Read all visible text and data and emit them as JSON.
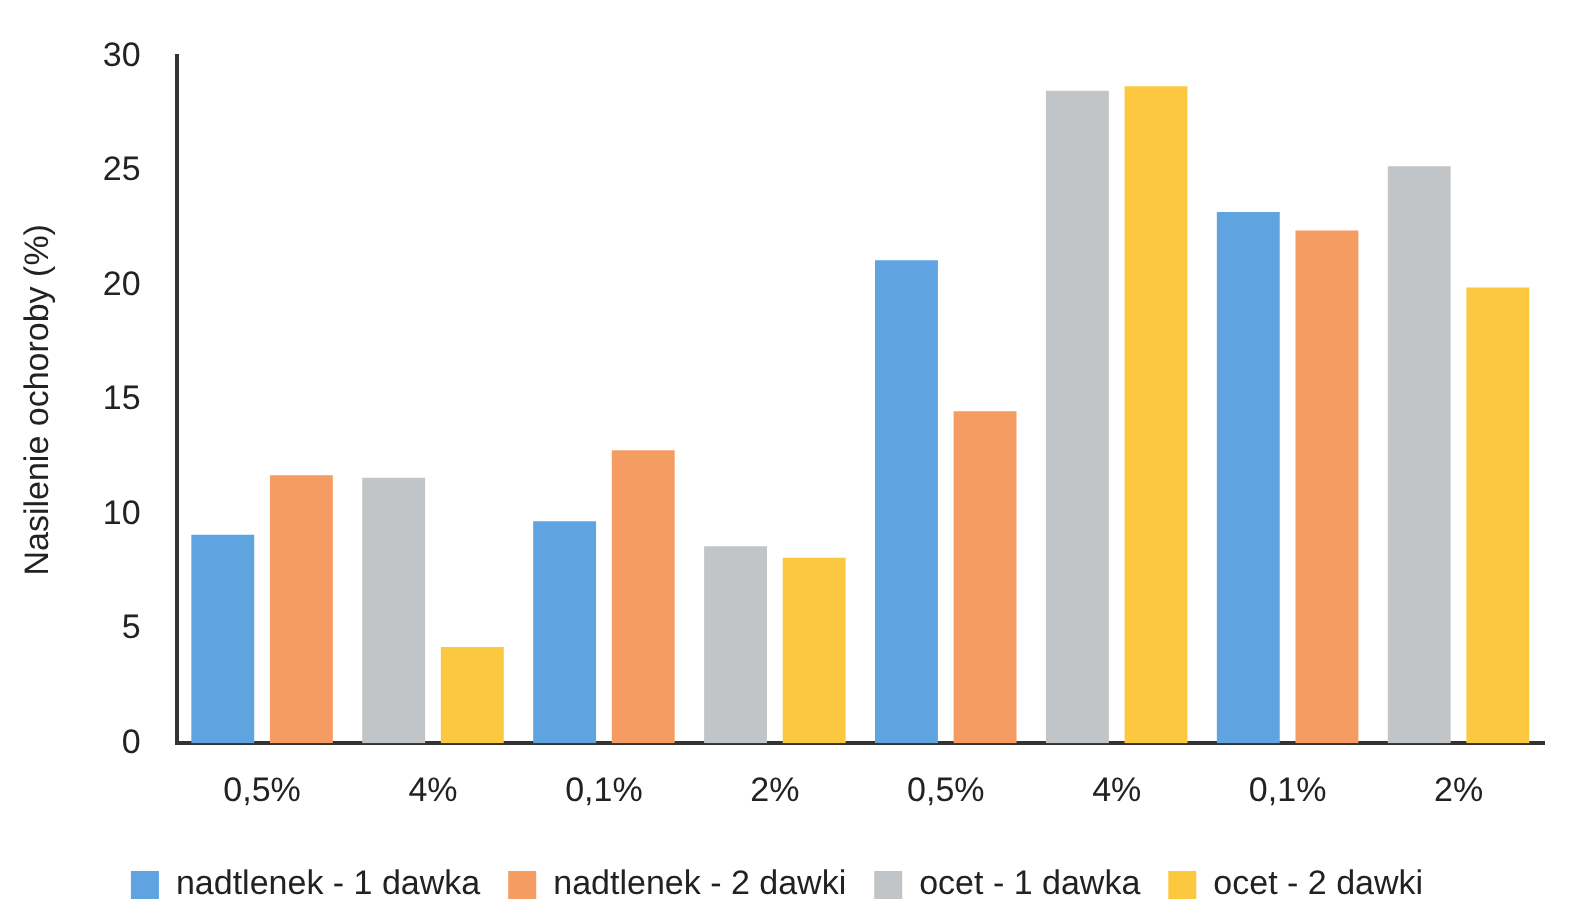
{
  "chart_data": {
    "type": "bar",
    "ylabel": "Nasilenie ochoroby (%)",
    "categories": [
      "0,5%",
      "4%",
      "0,1%",
      "2%",
      "0,5%",
      "4%",
      "0,1%",
      "2%"
    ],
    "series": [
      {
        "name": "nadtlenek - 1 dawka",
        "color": "#5fa3e0",
        "values": [
          9.1,
          null,
          9.7,
          null,
          21.1,
          null,
          23.2,
          null
        ]
      },
      {
        "name": "nadtlenek - 2 dawki",
        "color": "#f59c62",
        "values": [
          11.7,
          null,
          12.8,
          null,
          14.5,
          null,
          22.4,
          null
        ]
      },
      {
        "name": "ocet - 1 dawka",
        "color": "#c2c5c7",
        "values": [
          null,
          11.6,
          null,
          8.6,
          null,
          28.5,
          null,
          25.2
        ]
      },
      {
        "name": "ocet - 2 dawki",
        "color": "#fcc83f",
        "values": [
          null,
          4.2,
          null,
          8.1,
          null,
          28.7,
          null,
          19.9
        ]
      }
    ],
    "ylim": [
      0,
      30
    ],
    "yticks": [
      0,
      5,
      10,
      15,
      20,
      25,
      30
    ],
    "grid": false,
    "legend": "bottom"
  }
}
